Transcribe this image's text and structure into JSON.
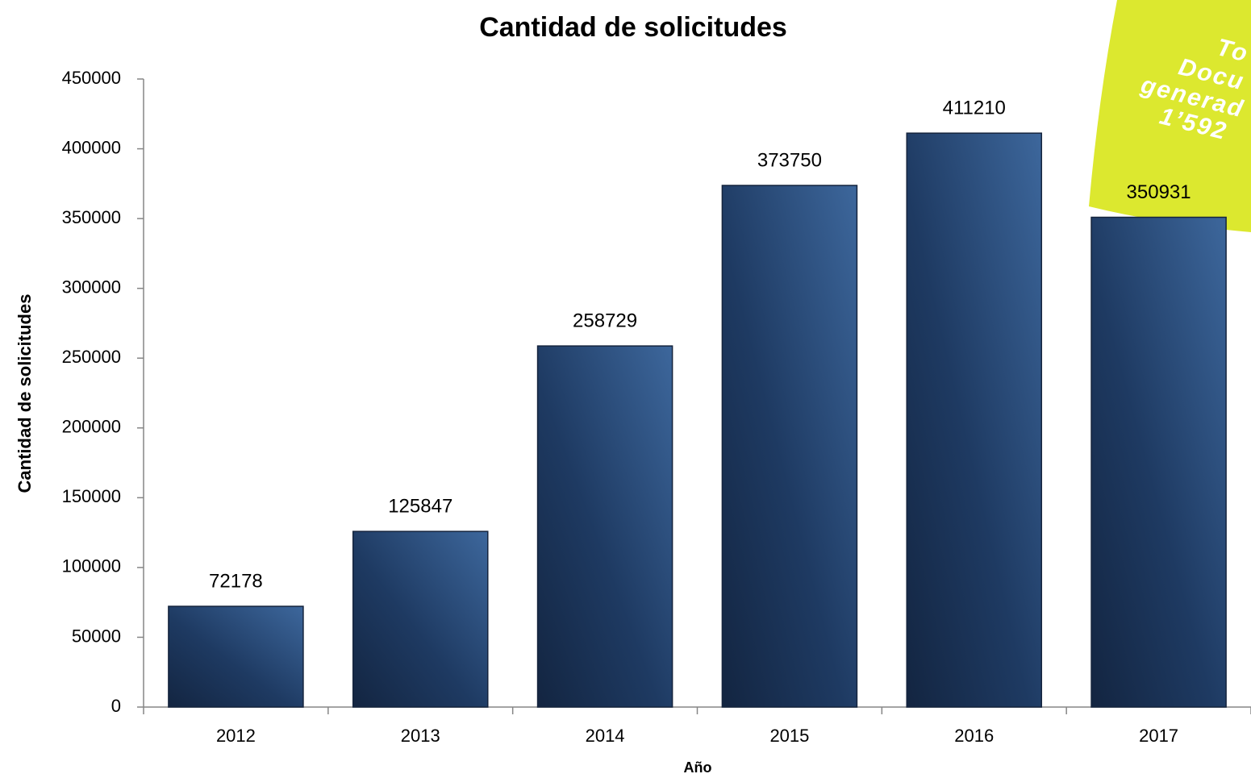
{
  "chart_data": {
    "type": "bar",
    "title": "Cantidad de solicitudes",
    "x_label": "Año",
    "y_label": "Cantidad de solicitudes",
    "categories": [
      "2012",
      "2013",
      "2014",
      "2015",
      "2016",
      "2017"
    ],
    "values": [
      72178,
      125847,
      258729,
      373750,
      411210,
      350931
    ],
    "color": "#2b4a76",
    "ylim": [
      0,
      450000
    ],
    "yticks": [
      0,
      50000,
      100000,
      150000,
      200000,
      250000,
      300000,
      350000,
      400000,
      450000
    ],
    "grid": false,
    "annotation": [
      "To",
      "Docu",
      "generad",
      "1’592"
    ]
  }
}
